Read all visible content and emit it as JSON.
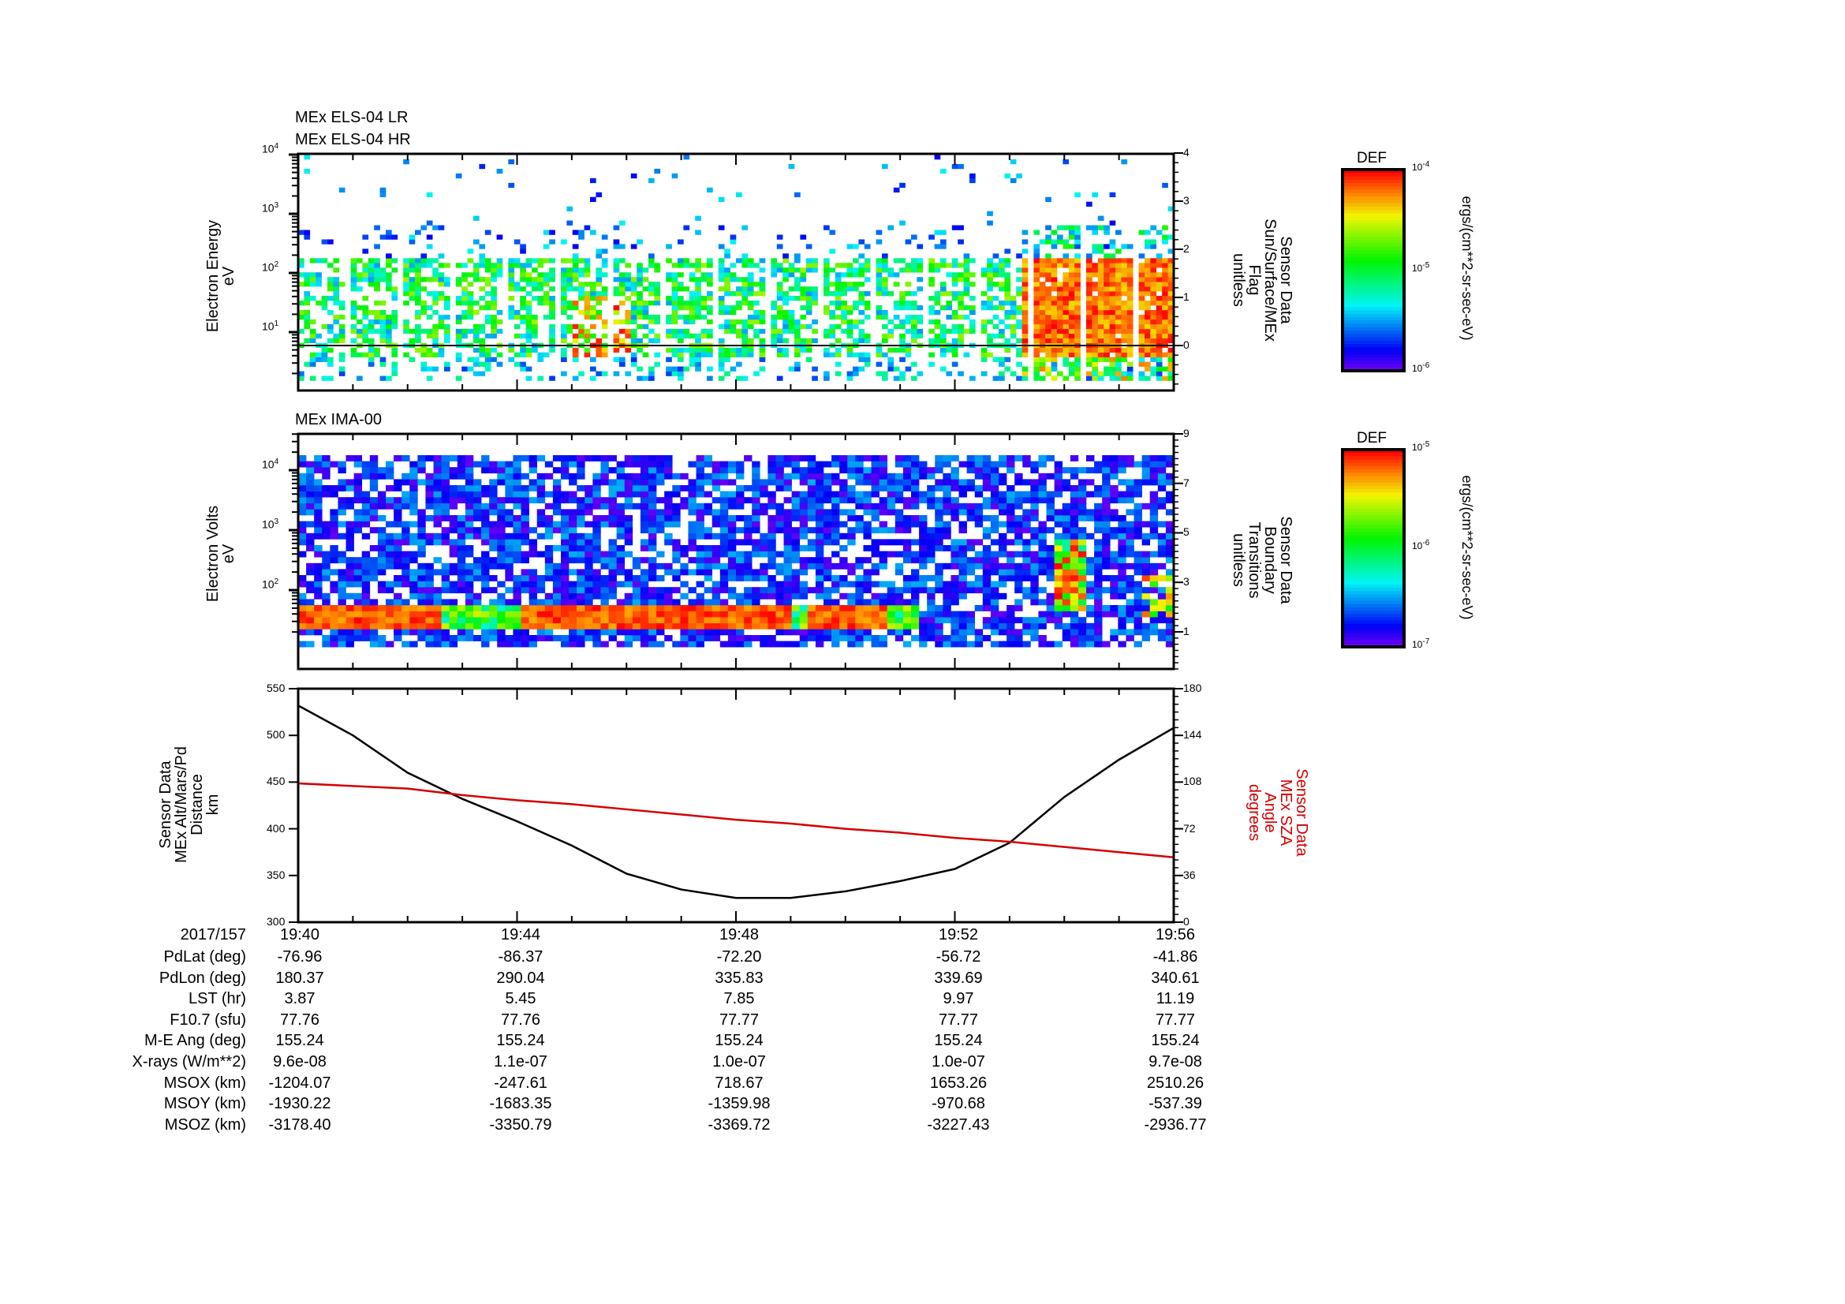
{
  "chart_data": [
    {
      "type": "heatmap",
      "panel": "els",
      "titles": [
        "MEx ELS-04 LR",
        "MEx ELS-04 HR"
      ],
      "ylabel": [
        "Electron Energy",
        "eV"
      ],
      "yscale": "log",
      "ylim": [
        1.5,
        10000
      ],
      "yticks": [
        "10",
        "10",
        "10",
        "10"
      ],
      "ytick_exps": [
        "1",
        "2",
        "3",
        "4"
      ],
      "y2label": [
        "Sensor Data",
        "Sun/Surface/MEx",
        "Flag",
        "unitless"
      ],
      "y2lim": [
        -0.9,
        4
      ],
      "y2ticks": [
        "0",
        "1",
        "2",
        "3",
        "4"
      ],
      "flag_value": 0,
      "colorbar": {
        "label": "DEF",
        "units": "ergs/(cm**2-sr-sec-eV)",
        "range": [
          1e-06,
          0.0001
        ],
        "ticks": [
          "10",
          "10",
          "10"
        ],
        "tick_exps": [
          "-6",
          "-5",
          "-4"
        ]
      },
      "features": [
        {
          "desc": "broad 5-200 eV green/yellow population 19:40-19:53"
        },
        {
          "desc": "intense red population 5-150 eV 19:53-19:56"
        }
      ]
    },
    {
      "type": "heatmap",
      "panel": "ima",
      "titles": [
        "MEx IMA-00"
      ],
      "ylabel": [
        "Electron Volts",
        "eV"
      ],
      "yscale": "log",
      "ylim": [
        10,
        20000
      ],
      "yticks": [
        "10",
        "10",
        "10"
      ],
      "ytick_exps": [
        "2",
        "3",
        "4"
      ],
      "y2label": [
        "Sensor Data",
        "Boundary",
        "Transitions",
        "unitless"
      ],
      "y2lim": [
        -0.5,
        9
      ],
      "y2ticks": [
        "1",
        "3",
        "5",
        "7",
        "9"
      ],
      "colorbar": {
        "label": "DEF",
        "units": "ergs/(cm**2-sr-sec-eV)",
        "range": [
          1e-07,
          1e-05
        ],
        "ticks": [
          "10",
          "10",
          "10"
        ],
        "tick_exps": [
          "-7",
          "-6",
          "-5"
        ]
      }
    },
    {
      "type": "line",
      "panel": "orbit",
      "ylabel": [
        "Sensor Data",
        "MEx Alt/Mars/Pd",
        "Distance",
        "km"
      ],
      "ylim": [
        300,
        550
      ],
      "yticks": [
        "300",
        "350",
        "400",
        "450",
        "500",
        "550"
      ],
      "y2label": [
        "Sensor Data",
        "MEx SZA",
        "Angle",
        "degrees"
      ],
      "y2lim": [
        0,
        180
      ],
      "y2ticks": [
        "0",
        "36",
        "72",
        "108",
        "144",
        "180"
      ],
      "x_minutes": [
        0,
        1,
        2,
        3,
        4,
        5,
        6,
        7,
        8,
        9,
        10,
        11,
        12,
        13,
        14,
        15,
        16
      ],
      "series": [
        {
          "name": "MEx Altitude (km)",
          "color": "#000000",
          "axis": "left",
          "values": [
            532,
            500,
            460,
            432,
            408,
            382,
            352,
            335,
            326,
            326,
            333,
            344,
            357,
            385,
            434,
            474,
            508
          ]
        },
        {
          "name": "MEx SZA (deg)",
          "color": "#d40000",
          "axis": "right",
          "values": [
            107,
            105,
            103,
            98,
            94,
            91,
            87,
            83,
            79,
            76,
            72,
            69,
            65,
            62,
            58,
            54,
            50
          ]
        }
      ]
    }
  ],
  "time_axis": {
    "date": "2017/157",
    "ticks": [
      "19:40",
      "19:44",
      "19:48",
      "19:52",
      "19:56"
    ]
  },
  "ephemeris": [
    {
      "label": "PdLat (deg)",
      "values": [
        "-76.96",
        "-86.37",
        "-72.20",
        "-56.72",
        "-41.86"
      ]
    },
    {
      "label": "PdLon (deg)",
      "values": [
        "180.37",
        "290.04",
        "335.83",
        "339.69",
        "340.61"
      ]
    },
    {
      "label": "LST (hr)",
      "values": [
        "3.87",
        "5.45",
        "7.85",
        "9.97",
        "11.19"
      ]
    },
    {
      "label": "F10.7 (sfu)",
      "values": [
        "77.76",
        "77.76",
        "77.77",
        "77.77",
        "77.77"
      ]
    },
    {
      "label": "M-E Ang (deg)",
      "values": [
        "155.24",
        "155.24",
        "155.24",
        "155.24",
        "155.24"
      ]
    },
    {
      "label": "X-rays (W/m**2)",
      "values": [
        "9.6e-08",
        "1.1e-07",
        "1.0e-07",
        "1.0e-07",
        "9.7e-08"
      ]
    },
    {
      "label": "MSOX (km)",
      "values": [
        "-1204.07",
        "-247.61",
        "718.67",
        "1653.26",
        "2510.26"
      ]
    },
    {
      "label": "MSOY (km)",
      "values": [
        "-1930.22",
        "-1683.35",
        "-1359.98",
        "-970.68",
        "-537.39"
      ]
    },
    {
      "label": "MSOZ (km)",
      "values": [
        "-3178.40",
        "-3350.79",
        "-3369.72",
        "-3227.43",
        "-2936.77"
      ]
    }
  ]
}
